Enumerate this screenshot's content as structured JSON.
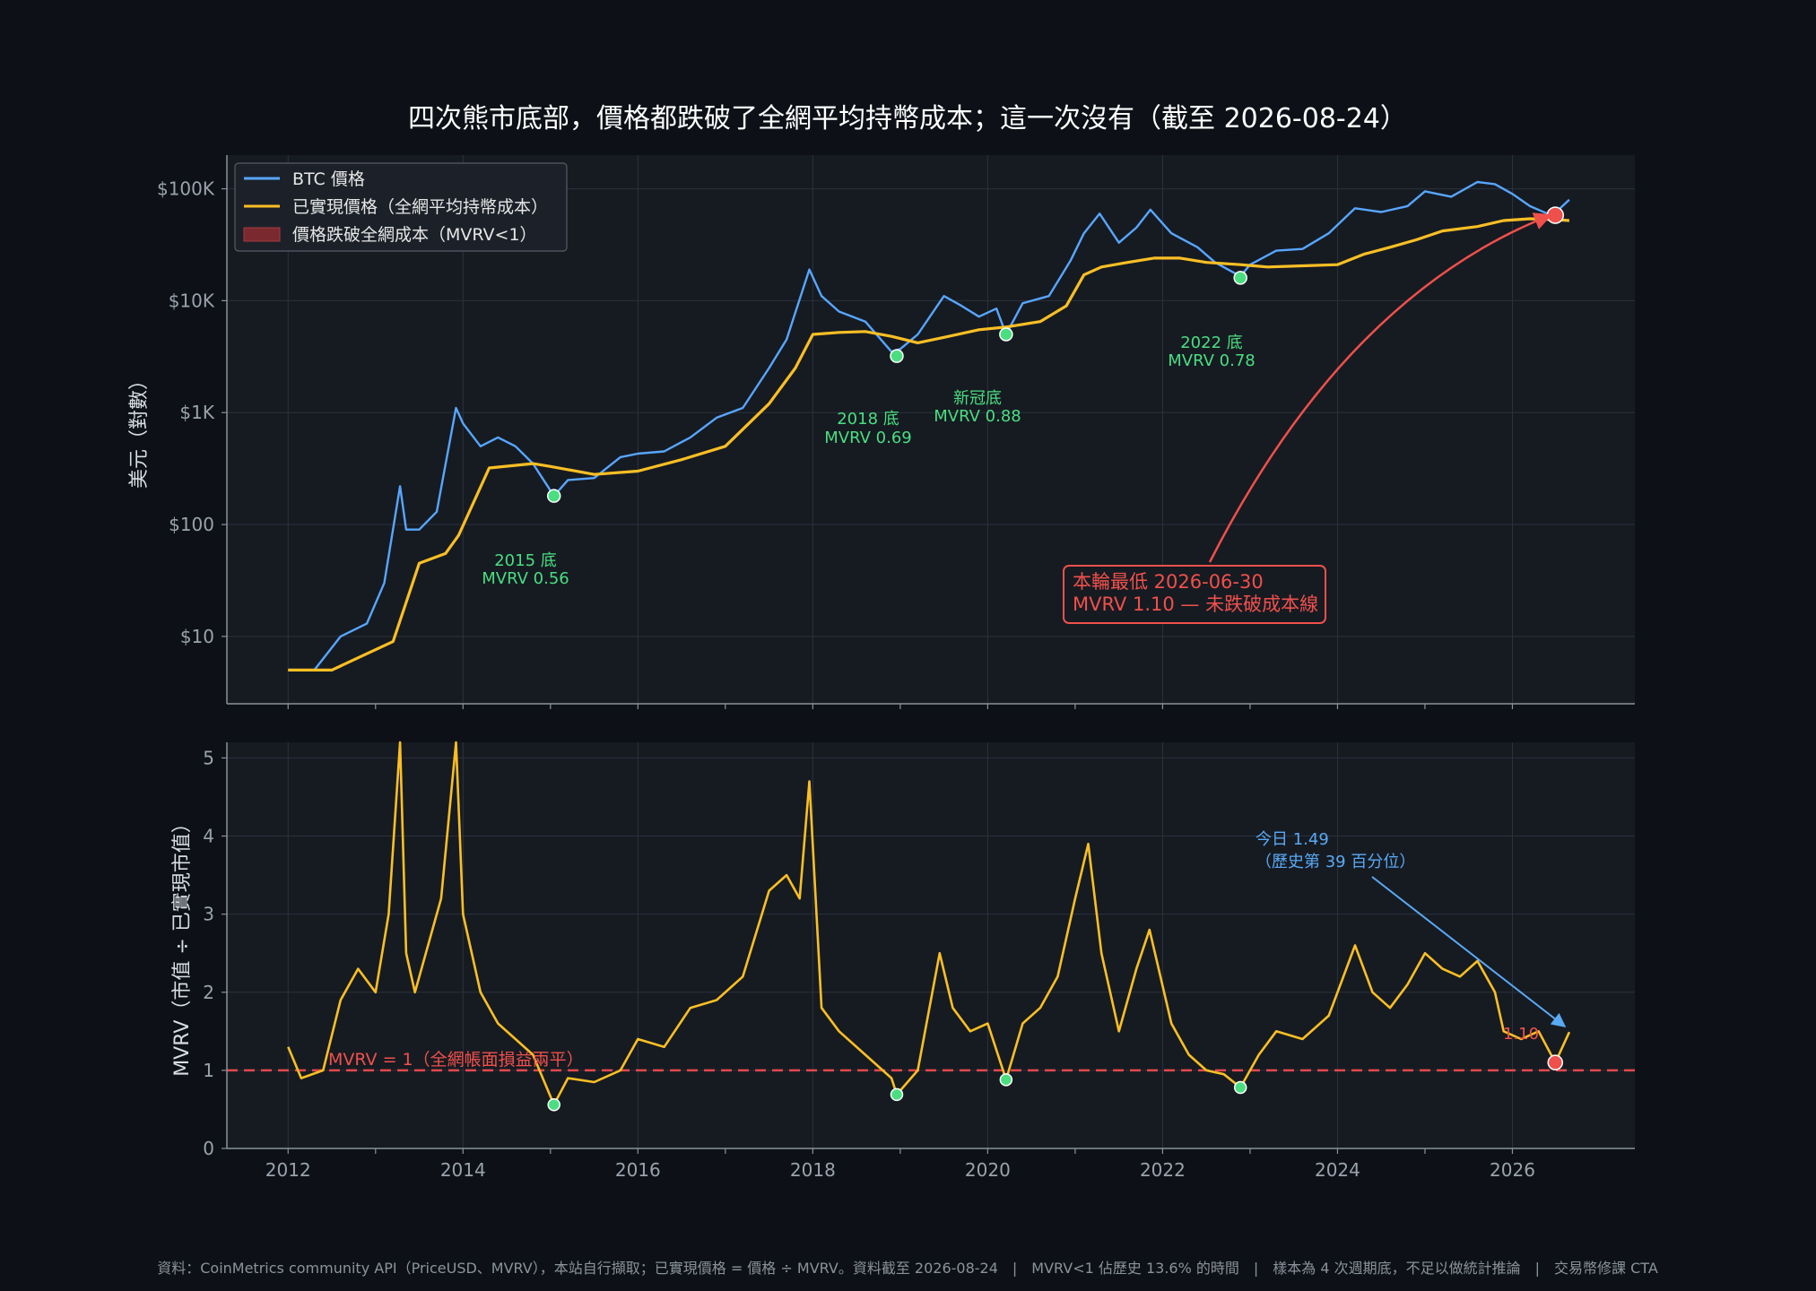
{
  "title": "四次熊市底部，價格都跌破了全網平均持幣成本；這一次沒有（截至 2026-08-24）",
  "footer": "資料：CoinMetrics community API（PriceUSD、MVRV），本站自行擷取；已實現價格 = 價格 ÷ MVRV。資料截至 2026-08-24　|　MVRV<1 佔歷史 13.6% 的時間　|　樣本為 4 次週期底，不足以做統計推論　|　交易幣修課 CTA",
  "colors": {
    "background": "#0d1117",
    "panel": "#161b22",
    "grid": "#2a323d",
    "btc": "#58a6ff",
    "realized": "#fbbf24",
    "mvrv": "#fbbf24",
    "bottom_marker": "#4ade80",
    "current_marker": "#f0504b",
    "breakeven_line": "#e5484d",
    "today_arrow": "#5aa9f5"
  },
  "chart_data": [
    {
      "type": "line",
      "panel": "price",
      "ylabel": "美元（對數）",
      "yscale": "log",
      "ylim": [
        2.5,
        200000
      ],
      "xlim": [
        2011.3,
        2027.4
      ],
      "grid": true,
      "legend_position": "top-left",
      "yticks": [
        10,
        100,
        1000,
        10000,
        100000
      ],
      "ytick_labels": [
        "$10",
        "$100",
        "$1K",
        "$10K",
        "$100K"
      ],
      "legend": [
        "BTC 價格",
        "已實現價格（全網平均持幣成本）",
        "價格跌破全網成本（MVRV<1）"
      ],
      "series": [
        {
          "name": "BTC 價格",
          "x": [
            2012.0,
            2012.3,
            2012.6,
            2012.9,
            2013.1,
            2013.28,
            2013.35,
            2013.5,
            2013.7,
            2013.92,
            2014.0,
            2014.2,
            2014.4,
            2014.6,
            2014.8,
            2015.04,
            2015.2,
            2015.5,
            2015.8,
            2016.0,
            2016.3,
            2016.6,
            2016.9,
            2017.2,
            2017.5,
            2017.7,
            2017.96,
            2018.1,
            2018.3,
            2018.6,
            2018.9,
            2019.0,
            2019.2,
            2019.5,
            2019.7,
            2019.9,
            2020.1,
            2020.21,
            2020.4,
            2020.7,
            2020.95,
            2021.1,
            2021.28,
            2021.5,
            2021.7,
            2021.86,
            2022.1,
            2022.4,
            2022.6,
            2022.89,
            2023.0,
            2023.3,
            2023.6,
            2023.9,
            2024.2,
            2024.5,
            2024.8,
            2025.0,
            2025.3,
            2025.6,
            2025.8,
            2026.0,
            2026.2,
            2026.4,
            2026.5,
            2026.65
          ],
          "values": [
            5,
            5,
            10,
            13,
            30,
            220,
            90,
            90,
            130,
            1100,
            800,
            500,
            600,
            500,
            350,
            180,
            250,
            260,
            400,
            430,
            450,
            600,
            900,
            1100,
            2500,
            4500,
            19000,
            11000,
            8000,
            6500,
            3500,
            3700,
            5000,
            11000,
            9000,
            7200,
            8500,
            5000,
            9500,
            11000,
            23000,
            40000,
            60000,
            33000,
            45000,
            65000,
            40000,
            30000,
            22000,
            16500,
            21000,
            28000,
            29000,
            40000,
            67000,
            62000,
            70000,
            95000,
            85000,
            115000,
            110000,
            90000,
            70000,
            60000,
            62000,
            80000
          ]
        },
        {
          "name": "已實現價格（全網平均持幣成本）",
          "x": [
            2012.0,
            2012.5,
            2012.9,
            2013.2,
            2013.5,
            2013.8,
            2013.95,
            2014.3,
            2014.8,
            2015.0,
            2015.5,
            2016.0,
            2016.5,
            2017.0,
            2017.5,
            2017.8,
            2018.0,
            2018.3,
            2018.6,
            2018.9,
            2019.2,
            2019.5,
            2019.9,
            2020.2,
            2020.6,
            2020.9,
            2021.1,
            2021.3,
            2021.6,
            2021.9,
            2022.2,
            2022.5,
            2022.89,
            2023.2,
            2023.6,
            2024.0,
            2024.3,
            2024.6,
            2024.9,
            2025.2,
            2025.6,
            2025.9,
            2026.2,
            2026.5,
            2026.65
          ],
          "values": [
            5,
            5,
            7,
            9,
            45,
            55,
            80,
            320,
            350,
            330,
            280,
            300,
            380,
            500,
            1200,
            2500,
            5000,
            5200,
            5300,
            4800,
            4200,
            4700,
            5500,
            5800,
            6500,
            9000,
            17000,
            20000,
            22000,
            24000,
            24000,
            22000,
            21000,
            20000,
            20500,
            21000,
            26000,
            30000,
            35000,
            42000,
            46000,
            52000,
            54000,
            53000,
            52000
          ]
        }
      ],
      "annotations": [
        {
          "label": "2015 底",
          "mvrv": "MVRV 0.56",
          "date": 2015.04,
          "price": 180
        },
        {
          "label": "2018 底",
          "mvrv": "MVRV 0.69",
          "date": 2018.96,
          "price": 3200
        },
        {
          "label": "新冠底",
          "mvrv": "MVRV 0.88",
          "date": 2020.21,
          "price": 5000
        },
        {
          "label": "2022 底",
          "mvrv": "MVRV 0.78",
          "date": 2022.89,
          "price": 16000
        }
      ],
      "current_low": {
        "line1": "本輪最低 2026-06-30",
        "line2": "MVRV 1.10 — 未跌破成本線",
        "date": 2026.49,
        "price": 58000
      }
    },
    {
      "type": "line",
      "panel": "mvrv",
      "ylabel": "MVRV（市值 ÷ 已實現市值）",
      "ylim": [
        0,
        5.2
      ],
      "xlim": [
        2011.3,
        2027.4
      ],
      "grid": true,
      "yticks": [
        0,
        1,
        2,
        3,
        4,
        5
      ],
      "xticks": [
        2012,
        2014,
        2016,
        2018,
        2020,
        2022,
        2024,
        2026
      ],
      "series": [
        {
          "name": "MVRV",
          "x": [
            2012.0,
            2012.15,
            2012.4,
            2012.6,
            2012.8,
            2013.0,
            2013.15,
            2013.28,
            2013.35,
            2013.45,
            2013.6,
            2013.75,
            2013.92,
            2014.0,
            2014.2,
            2014.4,
            2014.6,
            2014.8,
            2015.04,
            2015.2,
            2015.5,
            2015.8,
            2016.0,
            2016.3,
            2016.6,
            2016.9,
            2017.2,
            2017.5,
            2017.7,
            2017.85,
            2017.96,
            2018.1,
            2018.3,
            2018.6,
            2018.9,
            2018.96,
            2019.2,
            2019.45,
            2019.6,
            2019.8,
            2020.0,
            2020.21,
            2020.4,
            2020.6,
            2020.8,
            2021.0,
            2021.15,
            2021.3,
            2021.5,
            2021.7,
            2021.85,
            2022.1,
            2022.3,
            2022.5,
            2022.7,
            2022.89,
            2023.1,
            2023.3,
            2023.6,
            2023.9,
            2024.2,
            2024.4,
            2024.6,
            2024.8,
            2025.0,
            2025.2,
            2025.4,
            2025.6,
            2025.8,
            2025.9,
            2026.1,
            2026.3,
            2026.49,
            2026.65
          ],
          "values": [
            1.3,
            0.9,
            1.0,
            1.9,
            2.3,
            2.0,
            3.0,
            5.2,
            2.5,
            2.0,
            2.6,
            3.2,
            5.3,
            3.0,
            2.0,
            1.6,
            1.4,
            1.2,
            0.56,
            0.9,
            0.85,
            1.0,
            1.4,
            1.3,
            1.8,
            1.9,
            2.2,
            3.3,
            3.5,
            3.2,
            4.7,
            1.8,
            1.5,
            1.2,
            0.9,
            0.69,
            1.0,
            2.5,
            1.8,
            1.5,
            1.6,
            0.88,
            1.6,
            1.8,
            2.2,
            3.2,
            3.9,
            2.5,
            1.5,
            2.3,
            2.8,
            1.6,
            1.2,
            1.0,
            0.95,
            0.78,
            1.2,
            1.5,
            1.4,
            1.7,
            2.6,
            2.0,
            1.8,
            2.1,
            2.5,
            2.3,
            2.2,
            2.4,
            2.0,
            1.5,
            1.4,
            1.5,
            1.1,
            1.49
          ]
        }
      ],
      "reference_line": {
        "y": 1,
        "label": "MVRV = 1（全網帳面損益兩平）"
      },
      "bottom_markers": [
        {
          "date": 2015.04,
          "mvrv": 0.56
        },
        {
          "date": 2018.96,
          "mvrv": 0.69
        },
        {
          "date": 2020.21,
          "mvrv": 0.88
        },
        {
          "date": 2022.89,
          "mvrv": 0.78
        }
      ],
      "current_low": {
        "label": "1.10",
        "date": 2026.49,
        "mvrv": 1.1
      },
      "today": {
        "line1": "今日 1.49",
        "line2": "（歷史第 39 百分位）",
        "date": 2026.65,
        "mvrv": 1.49
      }
    }
  ]
}
